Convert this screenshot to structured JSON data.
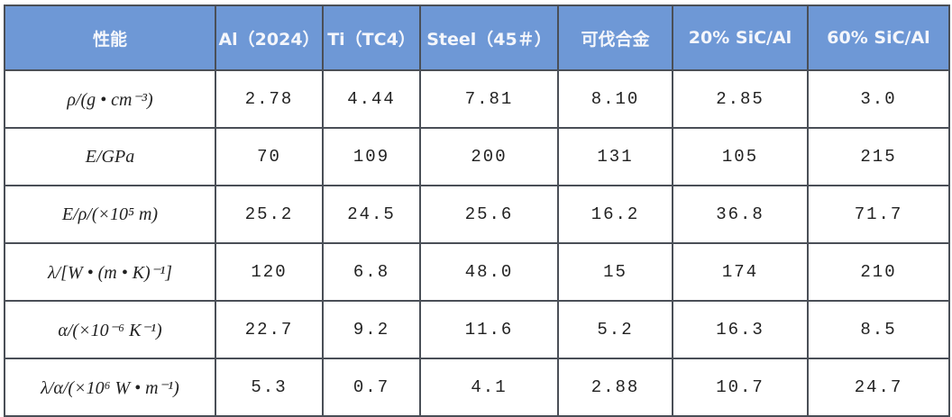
{
  "table": {
    "header": [
      "性能",
      "Al（2024）",
      "Ti（TC4）",
      "Steel（45＃）",
      "可伐合金",
      "20% SiC/Al",
      "60% SiC/Al"
    ],
    "rows": [
      [
        "ρ/(g • cm⁻³)",
        "2.78",
        "4.44",
        "7.81",
        "8.10",
        "2.85",
        "3.0"
      ],
      [
        "E/GPa",
        "70",
        "109",
        "200",
        "131",
        "105",
        "215"
      ],
      [
        "E/ρ/(×10⁵ m)",
        "25.2",
        "24.5",
        "25.6",
        "16.2",
        "36.8",
        "71.7"
      ],
      [
        "λ/[W • (m • K)⁻¹]",
        "120",
        "6.8",
        "48.0",
        "15",
        "174",
        "210"
      ],
      [
        "α/(×10⁻⁶ K⁻¹)",
        "22.7",
        "9.2",
        "11.6",
        "5.2",
        "16.3",
        "8.5"
      ],
      [
        "λ/α/(×10⁶ W • m⁻¹)",
        "5.3",
        "0.7",
        "4.1",
        "2.88",
        "10.7",
        "24.7"
      ]
    ]
  }
}
